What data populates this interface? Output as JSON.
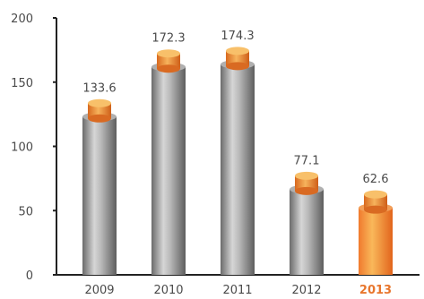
{
  "chart_data": {
    "type": "bar",
    "title": "",
    "xlabel": "",
    "ylabel": "",
    "categories": [
      "2009",
      "2010",
      "2011",
      "2012",
      "2013"
    ],
    "values": [
      133.6,
      172.3,
      174.3,
      77.1,
      62.6
    ],
    "value_labels": [
      "133.6",
      "172.3",
      "174.3",
      "77.1",
      "62.6"
    ],
    "highlighted_category": "2013",
    "ylim": [
      0,
      200
    ],
    "yticks": [
      0,
      50,
      100,
      150,
      200
    ],
    "grid": false,
    "legend": "none",
    "colors": {
      "bar": "#9a9a9a",
      "cap": "#f0a040",
      "highlight_bar": "#ee7a2e",
      "highlight_text": "#e8762d",
      "axis": "#222222"
    }
  }
}
